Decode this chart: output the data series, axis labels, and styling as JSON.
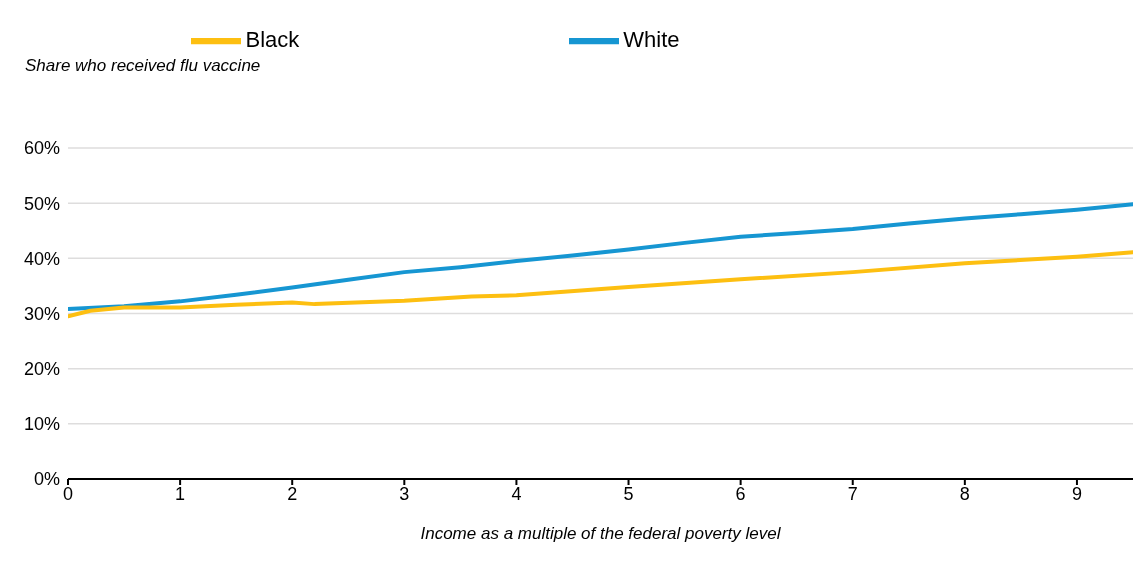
{
  "chart_data": {
    "type": "line",
    "ylabel": "Share who received flu vaccine",
    "xlabel": "Income as a multiple of the federal poverty level",
    "xlim": [
      0,
      9.5
    ],
    "xticks": [
      0,
      1,
      2,
      3,
      4,
      5,
      6,
      7,
      8,
      9
    ],
    "ylim": [
      0,
      60
    ],
    "yticks": [
      {
        "value": 0,
        "label": "0%"
      },
      {
        "value": 10,
        "label": "10%"
      },
      {
        "value": 20,
        "label": "20%"
      },
      {
        "value": 30,
        "label": "30%"
      },
      {
        "value": 40,
        "label": "40%"
      },
      {
        "value": 50,
        "label": "50%"
      },
      {
        "value": 60,
        "label": "60%"
      }
    ],
    "grid": "y",
    "legend": "top",
    "marker": "none",
    "line_style": "solid",
    "series": [
      {
        "name": "White",
        "color": "#1696d2",
        "x": [
          0,
          0.5,
          1,
          1.5,
          2,
          2.5,
          3,
          3.5,
          4,
          4.5,
          5,
          5.5,
          6,
          6.5,
          7,
          7.5,
          8,
          8.5,
          9,
          9.5
        ],
        "values": [
          30.8,
          31.3,
          32.2,
          33.4,
          34.7,
          36.1,
          37.5,
          38.4,
          39.5,
          40.5,
          41.6,
          42.8,
          43.9,
          44.6,
          45.3,
          46.3,
          47.2,
          48,
          48.8,
          49.8
        ]
      },
      {
        "name": "Black",
        "color": "#fdbf11",
        "x": [
          0,
          0.2,
          0.5,
          1,
          1.5,
          2,
          2.2,
          3,
          3.6,
          4,
          5,
          6,
          7,
          8,
          9,
          9.5
        ],
        "values": [
          29.5,
          30.5,
          31.1,
          31.1,
          31.6,
          32,
          31.7,
          32.3,
          33.1,
          33.3,
          34.8,
          36.2,
          37.5,
          39.1,
          40.3,
          41.1
        ]
      }
    ]
  }
}
